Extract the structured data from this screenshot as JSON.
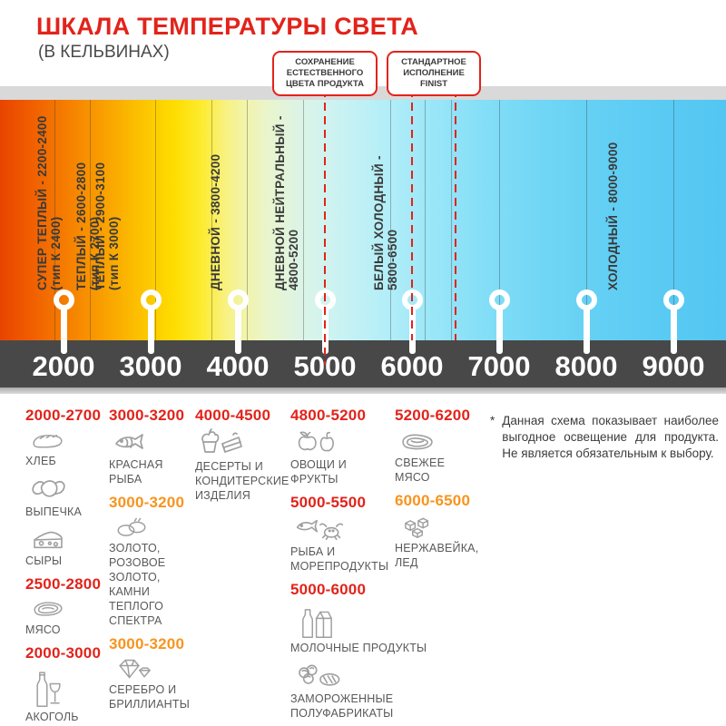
{
  "header": {
    "title": "ШКАЛА ТЕМПЕРАТУРЫ СВЕТА",
    "subtitle": "(В КЕЛЬВИНАХ)"
  },
  "colors": {
    "red": "#e2231a",
    "orange": "#f7941d",
    "axis_bar": "#484848"
  },
  "callouts": [
    {
      "text": "СОХРАНЕНИЕ ЕСТЕСТВЕННОГО ЦВЕТА ПРОДУКТА",
      "kelvins": [
        5000
      ]
    },
    {
      "text": "СТАНДАРТНОЕ ИСПОЛНЕНИЕ FINIST",
      "kelvins": [
        6000,
        6500
      ]
    }
  ],
  "scale": {
    "min_kelvin": 2000,
    "max_kelvin": 9000,
    "ticks": [
      "2000",
      "3000",
      "4000",
      "5000",
      "6000",
      "7000",
      "8000",
      "9000"
    ],
    "zones": [
      {
        "label": "СУПЕР ТЕПЛЫЙ - 2200-2400",
        "sub": "(тип К 2400)",
        "kelvin": 2150
      },
      {
        "label": "ТЕПЛЫЙ - 2600-2800",
        "sub": "(тип К 2700)",
        "kelvin": 2590
      },
      {
        "label": "ТЕПЛЫЙ - 2900-3100",
        "sub": "(тип К 3000)",
        "kelvin": 2810
      },
      {
        "label": "ДНЕВНОЙ - 3800-4200",
        "sub": "",
        "kelvin": 3900
      },
      {
        "label": "ДНЕВНОЙ НЕЙТРАЛЬНЫЙ -",
        "sub": "4800-5200",
        "kelvin": 4870
      },
      {
        "label": "БЕЛЫЙ ХОЛОДНЫЙ -",
        "sub": "5800-6500",
        "kelvin": 6010
      },
      {
        "label": "ХОЛОДНЫЙ - 8000-9000",
        "sub": "",
        "kelvin": 8460
      }
    ],
    "boundaries_kelvin": [
      1900,
      2300,
      3050,
      3700,
      4100,
      4750,
      5750,
      6150,
      6450,
      7000,
      8000,
      9000
    ]
  },
  "categories": [
    {
      "groups": [
        {
          "range": "2000-2700",
          "color": "red",
          "items": [
            {
              "icon": "bread",
              "label": "ХЛЕБ"
            },
            {
              "icon": "croissant",
              "label": "ВЫПЕЧКА"
            },
            {
              "icon": "cheese",
              "label": "СЫРЫ"
            }
          ]
        },
        {
          "range": "2500-2800",
          "color": "red",
          "items": [
            {
              "icon": "meat",
              "label": "МЯСО"
            }
          ]
        },
        {
          "range": "2000-3000",
          "color": "red",
          "items": [
            {
              "icon": "alcohol",
              "label": "АКОГОЛЬ"
            }
          ]
        }
      ]
    },
    {
      "groups": [
        {
          "range": "3000-3200",
          "color": "red",
          "items": [
            {
              "icon": "fish",
              "label": "КРАСНАЯ\nРЫБА"
            }
          ]
        },
        {
          "range": "3000-3200",
          "color": "orange",
          "items": [
            {
              "icon": "rings",
              "label": "ЗОЛОТО,\nРОЗОВОЕ ЗОЛОТО,\nКАМНИ ТЕПЛОГО\nСПЕКТРА"
            }
          ]
        },
        {
          "range": "3000-3200",
          "color": "orange",
          "items": [
            {
              "icon": "diamond",
              "label": "СЕРЕБРО И\nБРИЛЛИАНТЫ"
            }
          ]
        }
      ]
    },
    {
      "groups": [
        {
          "range": "4000-4500",
          "color": "red",
          "items": [
            {
              "icon": "dessert",
              "label": "ДЕСЕРТЫ И\nКОНДИТЕРСКИЕ\nИЗДЕЛИЯ"
            }
          ]
        }
      ]
    },
    {
      "groups": [
        {
          "range": "4800-5200",
          "color": "red",
          "items": [
            {
              "icon": "vegetables",
              "label": "ОВОЩИ И\nФРУКТЫ"
            }
          ]
        },
        {
          "range": "5000-5500",
          "color": "red",
          "items": [
            {
              "icon": "seafood",
              "label": "РЫБА И\nМОРЕПРОДУКТЫ"
            }
          ]
        },
        {
          "range": "5000-6000",
          "color": "red",
          "items": [
            {
              "icon": "dairy",
              "label": "МОЛОЧНЫЕ ПРОДУКТЫ"
            },
            {
              "icon": "frozen",
              "label": "ЗАМОРОЖЕННЫЕ\nПОЛУФАБРИКАТЫ"
            }
          ]
        }
      ]
    },
    {
      "groups": [
        {
          "range": "5200-6200",
          "color": "red",
          "items": [
            {
              "icon": "freshmeat",
              "label": "СВЕЖЕЕ\nМЯСО"
            }
          ]
        },
        {
          "range": "6000-6500",
          "color": "orange",
          "items": [
            {
              "icon": "ice",
              "label": "НЕРЖАВЕЙКА,\nЛЕД"
            }
          ]
        }
      ]
    }
  ],
  "footnote": {
    "marker": "*",
    "text": "Данная схема показывает наиболее выгодное освещение для продукта. Не является обязательным к выбору."
  }
}
